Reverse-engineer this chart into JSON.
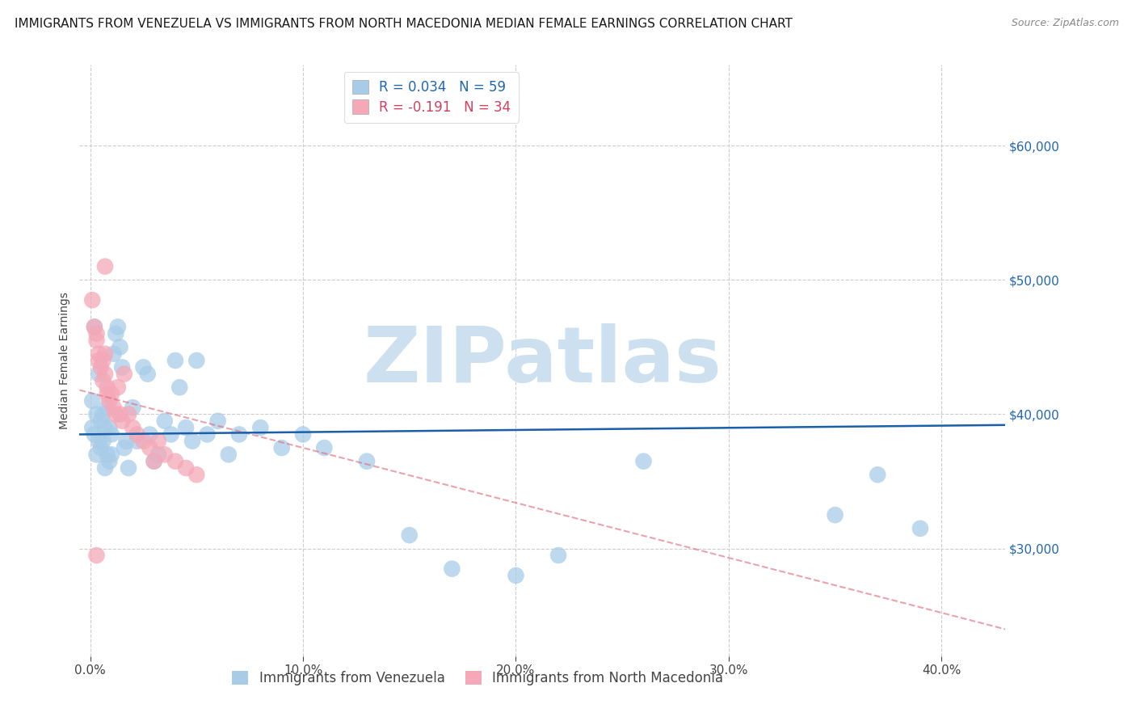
{
  "title": "IMMIGRANTS FROM VENEZUELA VS IMMIGRANTS FROM NORTH MACEDONIA MEDIAN FEMALE EARNINGS CORRELATION CHART",
  "source": "Source: ZipAtlas.com",
  "ylabel": "Median Female Earnings",
  "ytick_vals": [
    30000,
    40000,
    50000,
    60000
  ],
  "ytick_labels": [
    "$30,000",
    "$40,000",
    "$50,000",
    "$60,000"
  ],
  "xlabel_vals": [
    0.0,
    0.1,
    0.2,
    0.3,
    0.4
  ],
  "ylim": [
    22000,
    66000
  ],
  "xlim": [
    -0.005,
    0.43
  ],
  "R_venezuela": 0.034,
  "N_venezuela": 59,
  "R_macedonia": -0.191,
  "N_macedonia": 34,
  "venezuela_x": [
    0.001,
    0.001,
    0.002,
    0.002,
    0.003,
    0.003,
    0.004,
    0.004,
    0.005,
    0.005,
    0.006,
    0.006,
    0.007,
    0.007,
    0.008,
    0.008,
    0.009,
    0.009,
    0.01,
    0.01,
    0.011,
    0.012,
    0.013,
    0.014,
    0.015,
    0.016,
    0.017,
    0.018,
    0.02,
    0.022,
    0.025,
    0.027,
    0.028,
    0.03,
    0.032,
    0.035,
    0.038,
    0.04,
    0.042,
    0.045,
    0.048,
    0.05,
    0.055,
    0.06,
    0.065,
    0.07,
    0.08,
    0.09,
    0.1,
    0.11,
    0.13,
    0.15,
    0.17,
    0.2,
    0.22,
    0.26,
    0.35,
    0.37,
    0.39
  ],
  "venezuela_y": [
    39000,
    41000,
    38500,
    46500,
    37000,
    40000,
    38000,
    43000,
    37500,
    39500,
    40000,
    38000,
    36000,
    39000,
    37000,
    40500,
    39000,
    36500,
    38500,
    37000,
    44500,
    46000,
    46500,
    45000,
    43500,
    37500,
    38000,
    36000,
    40500,
    38000,
    43500,
    43000,
    38500,
    36500,
    37000,
    39500,
    38500,
    44000,
    42000,
    39000,
    38000,
    44000,
    38500,
    39500,
    37000,
    38500,
    39000,
    37500,
    38500,
    37500,
    36500,
    31000,
    28500,
    28000,
    29500,
    36500,
    32500,
    35500,
    31500
  ],
  "macedonia_x": [
    0.001,
    0.002,
    0.003,
    0.003,
    0.004,
    0.004,
    0.005,
    0.006,
    0.006,
    0.007,
    0.007,
    0.008,
    0.008,
    0.009,
    0.01,
    0.011,
    0.012,
    0.013,
    0.014,
    0.015,
    0.016,
    0.018,
    0.02,
    0.022,
    0.025,
    0.028,
    0.03,
    0.032,
    0.035,
    0.04,
    0.045,
    0.05,
    0.007,
    0.003
  ],
  "macedonia_y": [
    48500,
    46500,
    45500,
    46000,
    44500,
    44000,
    43500,
    42500,
    44000,
    43000,
    44500,
    42000,
    41500,
    41000,
    41500,
    40500,
    40000,
    42000,
    40000,
    39500,
    43000,
    40000,
    39000,
    38500,
    38000,
    37500,
    36500,
    38000,
    37000,
    36500,
    36000,
    35500,
    51000,
    29500
  ],
  "blue_dot_color": "#a8cce8",
  "pink_dot_color": "#f4a8b8",
  "blue_line_color": "#1a5fa8",
  "pink_line_color": "#e07080",
  "grid_color": "#cccccc",
  "background_color": "#ffffff",
  "title_fontsize": 11,
  "source_fontsize": 9,
  "axis_label_fontsize": 10,
  "tick_fontsize": 11,
  "legend_fontsize": 12,
  "watermark": "ZIPatlas",
  "watermark_color": "#cce0f0",
  "watermark_fontsize": 70,
  "blue_tick_color": "#2066b0",
  "bottom_legend_label1": "Immigrants from Venezuela",
  "bottom_legend_label2": "Immigrants from North Macedonia"
}
